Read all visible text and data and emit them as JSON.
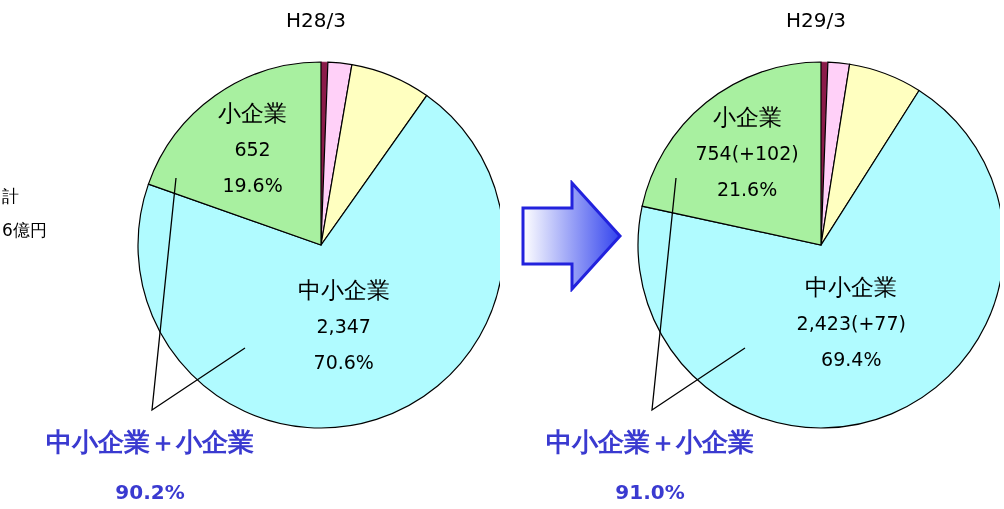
{
  "chart_data": [
    {
      "type": "pie",
      "title": "H28/3",
      "categories": [
        null,
        null,
        null,
        "中小企業",
        "小企業"
      ],
      "values": [
        0.6,
        2.1,
        7.1,
        70.6,
        19.6
      ],
      "colors": [
        "#8b1a4a",
        "#ffd0f8",
        "#ffffc0",
        "#b0fbff",
        "#a8f0a0"
      ],
      "value_labels": [
        null,
        null,
        null,
        "70.6%",
        "19.6%"
      ],
      "annotations": [
        {
          "text": "2,347",
          "x": "中小企業"
        },
        {
          "text": "652",
          "x": "小企業"
        },
        "中小企業＋小企業",
        "90.2%",
        "計",
        "6億円"
      ]
    },
    {
      "type": "pie",
      "title": "H29/3",
      "categories": [
        null,
        null,
        null,
        "中小企業",
        "小企業"
      ],
      "values": [
        0.6,
        1.9,
        6.5,
        69.4,
        21.6
      ],
      "colors": [
        "#8b1a4a",
        "#ffd0f8",
        "#ffffc0",
        "#b0fbff",
        "#a8f0a0"
      ],
      "value_labels": [
        null,
        null,
        null,
        "69.4%",
        "21.6%"
      ],
      "annotations": [
        {
          "text": "2,423(+77)",
          "x": "中小企業"
        },
        {
          "text": "754(+102)",
          "x": "小企業"
        },
        "中小企業＋小企業",
        "91.0%"
      ]
    }
  ]
}
